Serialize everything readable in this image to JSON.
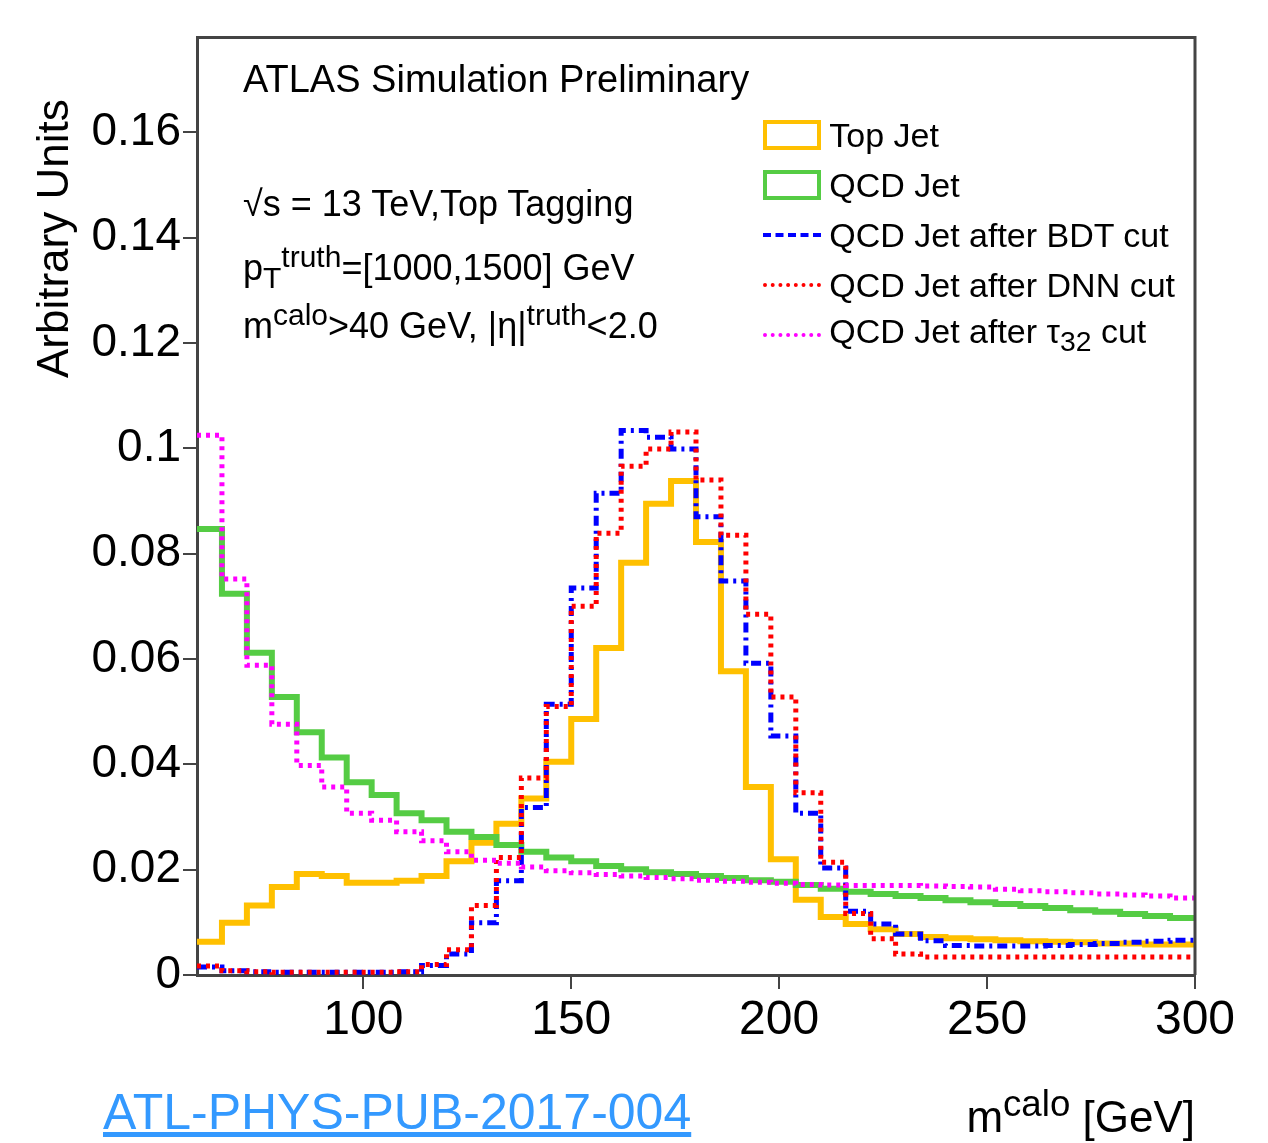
{
  "chart_data": {
    "type": "histogram",
    "xlabel": "m$^{calo}$ [GeV]",
    "ylabel": "Arbitrary Units",
    "annotations": [
      "ATLAS Simulation Preliminary",
      "√s = 13 TeV,Top Tagging",
      "p$_{T}$$^{truth}$=[1000,1500] GeV",
      "m$^{calo}$>40 GeV, |η|$^{truth}$<2.0",
      "ATL-PHYS-PUB-2017-004"
    ],
    "bins": [
      60,
      66,
      72,
      78,
      84,
      90,
      96,
      102,
      108,
      114,
      120,
      126,
      132,
      138,
      144,
      150,
      156,
      162,
      168,
      174,
      180,
      186,
      192,
      198,
      204,
      210,
      216,
      222,
      228,
      234,
      240,
      246,
      252,
      258,
      264,
      270,
      276,
      282,
      288,
      294,
      300
    ],
    "series": [
      {
        "name": "Top Jet",
        "color": "#ffc000",
        "line_style": "solid",
        "values": [
          0.0063,
          0.0099,
          0.0132,
          0.0167,
          0.0192,
          0.0188,
          0.0175,
          0.0175,
          0.0179,
          0.0188,
          0.0216,
          0.0251,
          0.0287,
          0.0335,
          0.0405,
          0.0486,
          0.0621,
          0.0783,
          0.0895,
          0.0938,
          0.0822,
          0.0577,
          0.0357,
          0.022,
          0.0143,
          0.011,
          0.0097,
          0.0087,
          0.0078,
          0.0072,
          0.007,
          0.0068,
          0.0066,
          0.0064,
          0.0063,
          0.0062,
          0.006,
          0.006,
          0.0058,
          0.0058
        ]
      },
      {
        "name": "QCD Jet",
        "color": "#55cc44",
        "line_style": "solid",
        "values": [
          0.0847,
          0.0724,
          0.0612,
          0.0528,
          0.0461,
          0.0413,
          0.0366,
          0.0342,
          0.0307,
          0.0294,
          0.0272,
          0.0262,
          0.0247,
          0.0234,
          0.0223,
          0.0216,
          0.0207,
          0.0201,
          0.0195,
          0.0192,
          0.0188,
          0.0184,
          0.018,
          0.0177,
          0.0171,
          0.0164,
          0.0158,
          0.0154,
          0.015,
          0.0146,
          0.0142,
          0.0138,
          0.0135,
          0.0131,
          0.0127,
          0.0123,
          0.012,
          0.0116,
          0.0112,
          0.0108
        ]
      },
      {
        "name": "QCD Jet after BDT cut",
        "color": "#0000ff",
        "line_style": "dashed",
        "values": [
          0.0015,
          0.0008,
          0.0006,
          0.0005,
          0.0005,
          0.0005,
          0.0005,
          0.0005,
          0.0006,
          0.0018,
          0.004,
          0.0099,
          0.0179,
          0.0318,
          0.0514,
          0.0735,
          0.0915,
          0.1034,
          0.1021,
          0.0999,
          0.087,
          0.0748,
          0.0592,
          0.0454,
          0.0307,
          0.0203,
          0.0121,
          0.0097,
          0.0078,
          0.0065,
          0.0056,
          0.0055,
          0.0055,
          0.0055,
          0.0056,
          0.0058,
          0.006,
          0.0062,
          0.0064,
          0.0066
        ]
      },
      {
        "name": "QCD Jet after DNN cut",
        "color": "#ff0000",
        "line_style": "dotted",
        "values": [
          0.0017,
          0.0008,
          0.0006,
          0.0005,
          0.0005,
          0.0005,
          0.0005,
          0.0005,
          0.0006,
          0.002,
          0.0048,
          0.0132,
          0.0223,
          0.0374,
          0.051,
          0.07,
          0.0839,
          0.0966,
          0.0999,
          0.1031,
          0.094,
          0.0835,
          0.0685,
          0.0528,
          0.0346,
          0.0214,
          0.0117,
          0.0069,
          0.004,
          0.0034,
          0.0034,
          0.0034,
          0.0034,
          0.0034,
          0.0034,
          0.0034,
          0.0034,
          0.0034,
          0.0034,
          0.0034
        ]
      },
      {
        "name": "QCD Jet after τ$_{32}$ cut",
        "color": "#ff00ff",
        "line_style": "dotted",
        "values": [
          0.1025,
          0.0752,
          0.0588,
          0.0476,
          0.0398,
          0.0357,
          0.0307,
          0.0294,
          0.0272,
          0.0255,
          0.0234,
          0.0218,
          0.0212,
          0.0205,
          0.0198,
          0.0194,
          0.0191,
          0.0188,
          0.0185,
          0.0183,
          0.018,
          0.0178,
          0.0176,
          0.0174,
          0.0172,
          0.0171,
          0.017,
          0.017,
          0.017,
          0.0169,
          0.0168,
          0.0167,
          0.0163,
          0.016,
          0.0158,
          0.0156,
          0.0154,
          0.0152,
          0.015,
          0.0146
        ]
      }
    ],
    "xlim": [
      60,
      300
    ],
    "ylim": [
      0,
      0.178
    ],
    "xticks": [
      100,
      150,
      200,
      250,
      300
    ],
    "yticks": [
      0,
      0.02,
      0.04,
      0.06,
      0.08,
      0.1,
      0.12,
      0.14,
      0.16
    ],
    "legend": "top right"
  }
}
